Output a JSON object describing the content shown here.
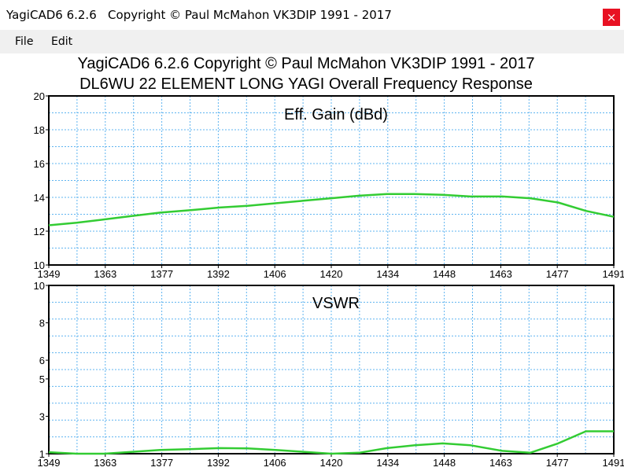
{
  "window": {
    "title": "YagiCAD6 6.2.6   Copyright © Paul McMahon VK3DIP 1991 - 2017",
    "close_glyph": "×"
  },
  "menu": {
    "items": [
      "File",
      "Edit"
    ]
  },
  "chart_data": [
    {
      "type": "line",
      "title_lines": [
        "YagiCAD6 6.2.6   Copyright © Paul McMahon VK3DIP 1991 - 2017",
        "DL6WU 22 ELEMENT LONG YAGI Overall Frequency Response"
      ],
      "inner_label": "Eff. Gain (dBd)",
      "xlim": [
        1349,
        1491
      ],
      "ylim": [
        10,
        20
      ],
      "xticks": [
        "1349",
        "1363",
        "1377",
        "1392",
        "1406",
        "1420",
        "1434",
        "1448",
        "1463",
        "1477",
        "1491"
      ],
      "yticks": [
        "20",
        "18",
        "16",
        "14",
        "12",
        "10"
      ],
      "grid": true,
      "line_color": "#33cc33",
      "grid_color": "#5fb4f0",
      "x": [
        1349,
        1356,
        1363,
        1370,
        1377,
        1385,
        1392,
        1399,
        1406,
        1413,
        1420,
        1427,
        1434,
        1441,
        1448,
        1455,
        1463,
        1470,
        1477,
        1484,
        1491
      ],
      "y": [
        12.35,
        12.5,
        12.7,
        12.9,
        13.1,
        13.25,
        13.4,
        13.5,
        13.65,
        13.8,
        13.95,
        14.1,
        14.2,
        14.2,
        14.15,
        14.05,
        14.05,
        13.95,
        13.7,
        13.2,
        12.85
      ]
    },
    {
      "type": "line",
      "inner_label": "VSWR",
      "xlim": [
        1349,
        1491
      ],
      "ylim": [
        1,
        10
      ],
      "xticks": [
        "1349",
        "1363",
        "1377",
        "1392",
        "1406",
        "1420",
        "1434",
        "1448",
        "1463",
        "1477",
        "1491"
      ],
      "yticks": [
        "10",
        "8",
        "6",
        "5",
        "3",
        "1"
      ],
      "ytick_values": [
        10,
        8,
        6,
        5,
        3,
        1
      ],
      "grid": true,
      "line_color": "#33cc33",
      "grid_color": "#5fb4f0",
      "x": [
        1349,
        1356,
        1363,
        1370,
        1377,
        1385,
        1392,
        1399,
        1406,
        1413,
        1420,
        1427,
        1434,
        1441,
        1448,
        1455,
        1463,
        1470,
        1477,
        1484,
        1491
      ],
      "y": [
        1.08,
        1.0,
        1.0,
        1.1,
        1.2,
        1.25,
        1.3,
        1.28,
        1.2,
        1.1,
        1.0,
        1.05,
        1.3,
        1.45,
        1.55,
        1.45,
        1.15,
        1.05,
        1.55,
        2.2,
        2.2
      ]
    }
  ]
}
